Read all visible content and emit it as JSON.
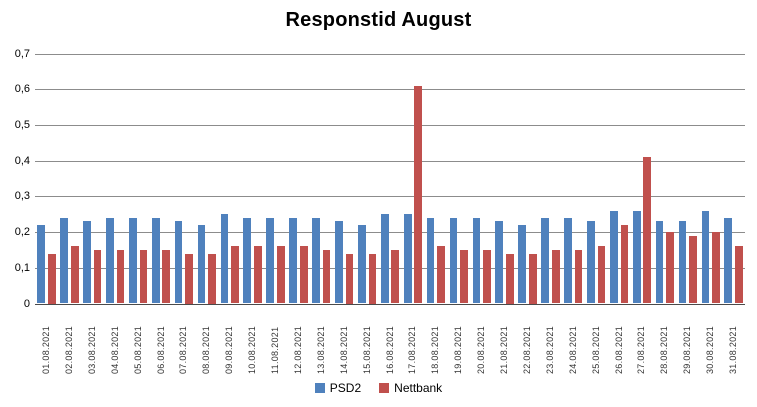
{
  "chart_data": {
    "type": "bar",
    "title": "Responstid August",
    "categories": [
      "01.08.2021",
      "02.08.2021",
      "03.08.2021",
      "04.08.2021",
      "05.08.2021",
      "06.08.2021",
      "07.08.2021",
      "08.08.2021",
      "09.08.2021",
      "10.08.2021",
      "11.08.2021",
      "12.08.2021",
      "13.08.2021",
      "14.08.2021",
      "15.08.2021",
      "16.08.2021",
      "17.08.2021",
      "18.08.2021",
      "19.08.2021",
      "20.08.2021",
      "21.08.2021",
      "22.08.2021",
      "23.08.2021",
      "24.08.2021",
      "25.08.2021",
      "26.08.2021",
      "27.08.2021",
      "28.08.2021",
      "29.08.2021",
      "30.08.2021",
      "31.08.2021"
    ],
    "series": [
      {
        "name": "PSD2",
        "color": "#4F81BD",
        "values": [
          0.22,
          0.24,
          0.23,
          0.24,
          0.24,
          0.24,
          0.23,
          0.22,
          0.25,
          0.24,
          0.24,
          0.24,
          0.24,
          0.23,
          0.22,
          0.25,
          0.25,
          0.24,
          0.24,
          0.24,
          0.23,
          0.22,
          0.24,
          0.24,
          0.23,
          0.26,
          0.26,
          0.23,
          0.23,
          0.26,
          0.24
        ]
      },
      {
        "name": "Nettbank",
        "color": "#C0504D",
        "values": [
          0.14,
          0.16,
          0.15,
          0.15,
          0.15,
          0.15,
          0.14,
          0.14,
          0.16,
          0.16,
          0.16,
          0.16,
          0.15,
          0.14,
          0.14,
          0.15,
          0.61,
          0.16,
          0.15,
          0.15,
          0.14,
          0.14,
          0.15,
          0.15,
          0.16,
          0.22,
          0.41,
          0.2,
          0.19,
          0.2,
          0.16
        ]
      }
    ],
    "xlabel": "",
    "ylabel": "",
    "ylim": [
      0,
      0.7
    ],
    "ytick_interval": 0.1,
    "ytick_labels": [
      "0",
      "0,1",
      "0,2",
      "0,3",
      "0,4",
      "0,5",
      "0,6",
      "0,7"
    ],
    "decimal_separator": ",",
    "grid": true,
    "legend_position": "bottom"
  },
  "styles": {
    "gridline_color": "#8C8C8C",
    "axis_color": "#4A4A4A",
    "bar_colors": {
      "psd2": "#4F81BD",
      "nettbank": "#C0504D"
    }
  }
}
